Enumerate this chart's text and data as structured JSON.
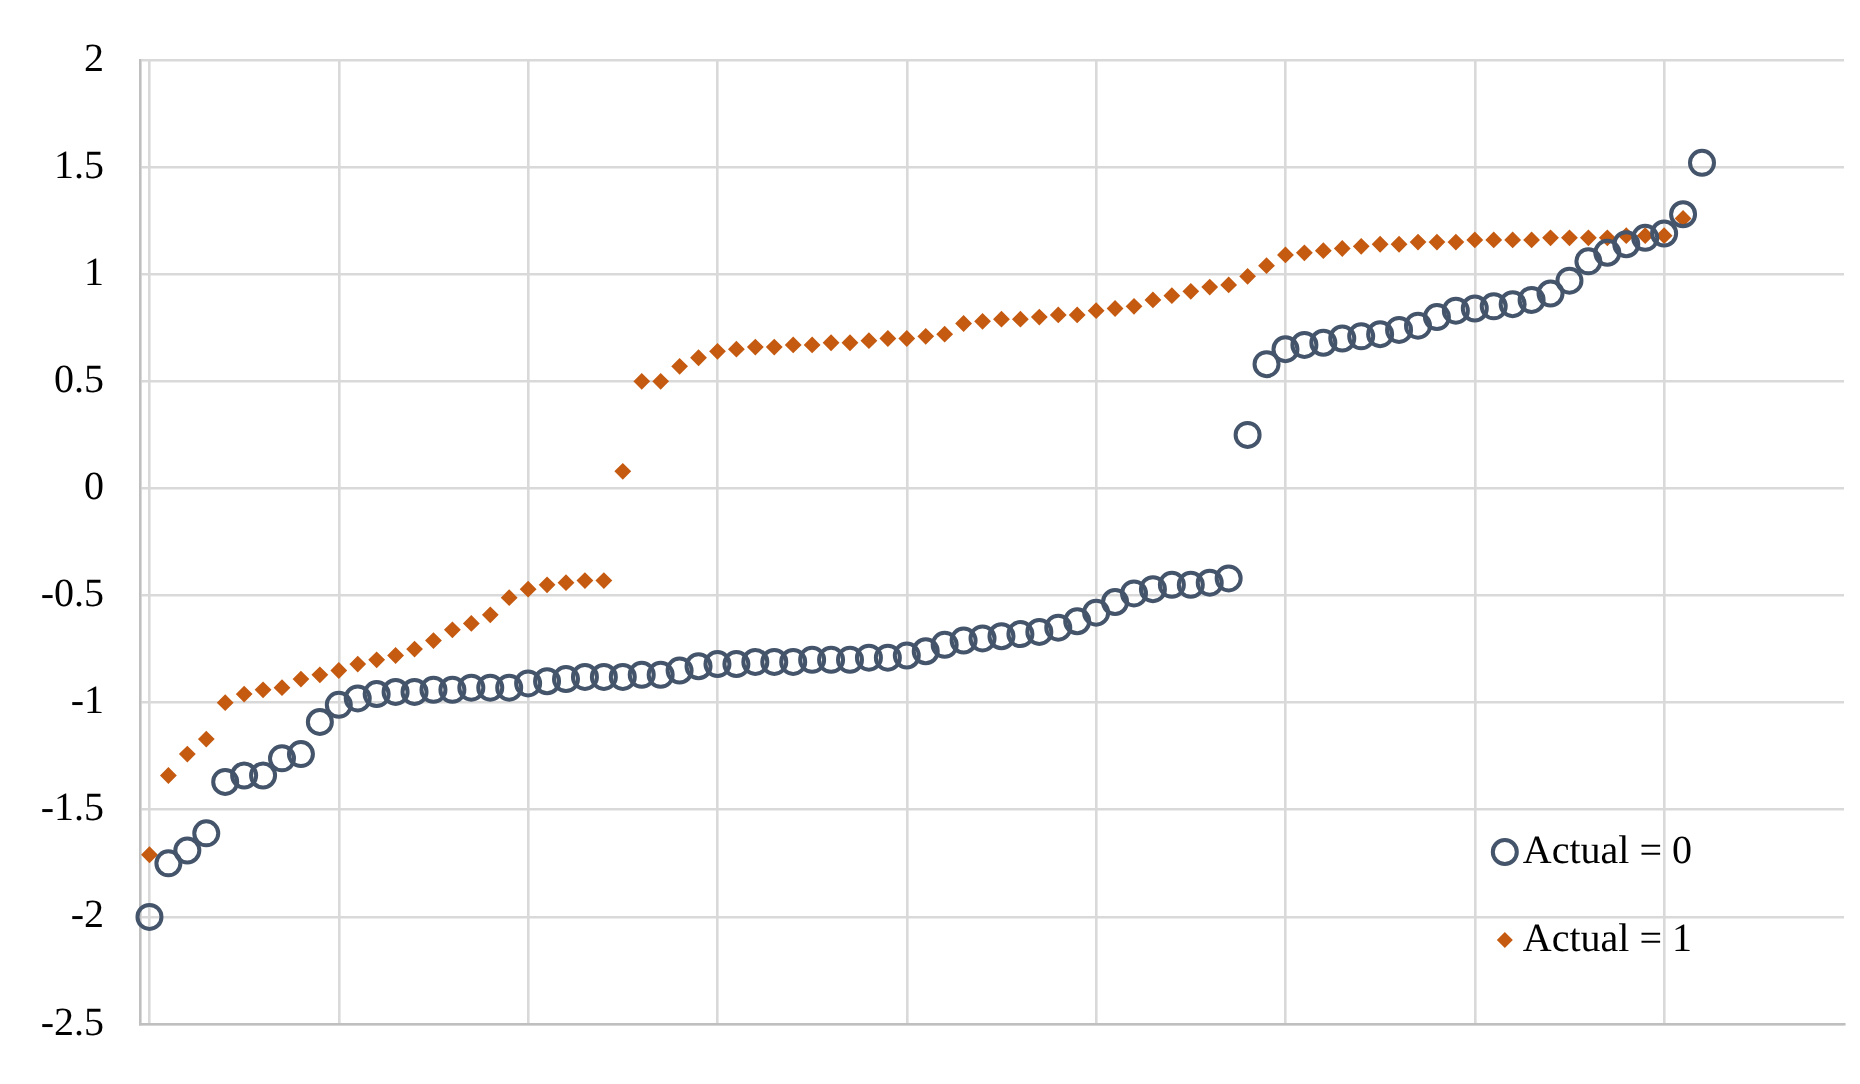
{
  "chart_data": {
    "type": "scatter",
    "categories": [
      null,
      null,
      null,
      null,
      null,
      null,
      null,
      null,
      null,
      null,
      null,
      null,
      null,
      null,
      null,
      null,
      null,
      null,
      null,
      null,
      null,
      null,
      null,
      null,
      null,
      null,
      null,
      null,
      null,
      null,
      null,
      null,
      null,
      null,
      null,
      null,
      null,
      null,
      null,
      null,
      null,
      null,
      null,
      null,
      null,
      null,
      null,
      null,
      null,
      null,
      null,
      null,
      null,
      null,
      null,
      null,
      null,
      null,
      null,
      null,
      null,
      null,
      null,
      null,
      null,
      null,
      null,
      null,
      null,
      null,
      null,
      null,
      null,
      null,
      null,
      null,
      null,
      null,
      null,
      null,
      null,
      null,
      null,
      null,
      null,
      null,
      null,
      null,
      null,
      null
    ],
    "ylim": [
      -2.5,
      2
    ],
    "yticks": [
      -2.5,
      -2,
      -1.5,
      -1,
      -0.5,
      0,
      0.5,
      1,
      1.5,
      2
    ],
    "grid": true,
    "legend": "bottom right",
    "series": [
      {
        "name": "Actual = 0",
        "color": "#44546a",
        "marker": "circle",
        "values": [
          -2.0,
          -1.75,
          -1.69,
          -1.61,
          -1.37,
          -1.34,
          -1.34,
          -1.26,
          -1.24,
          -1.09,
          -1.01,
          -0.98,
          -0.96,
          -0.95,
          -0.95,
          -0.94,
          -0.94,
          -0.93,
          -0.93,
          -0.93,
          -0.91,
          -0.9,
          -0.89,
          -0.88,
          -0.88,
          -0.88,
          -0.87,
          -0.87,
          -0.85,
          -0.83,
          -0.82,
          -0.82,
          -0.81,
          -0.81,
          -0.81,
          -0.8,
          -0.8,
          -0.8,
          -0.79,
          -0.79,
          -0.78,
          -0.76,
          -0.73,
          -0.71,
          -0.7,
          -0.69,
          -0.68,
          -0.67,
          -0.65,
          -0.62,
          -0.58,
          -0.53,
          -0.49,
          -0.47,
          -0.45,
          -0.45,
          -0.44,
          -0.42,
          0.25,
          0.58,
          0.65,
          0.67,
          0.68,
          0.7,
          0.71,
          0.72,
          0.74,
          0.76,
          0.8,
          0.83,
          0.84,
          0.85,
          0.86,
          0.88,
          0.91,
          0.97,
          1.06,
          1.1,
          1.14,
          1.17,
          1.19,
          1.28,
          1.52,
          null,
          null,
          null,
          null,
          null,
          null,
          null
        ]
      },
      {
        "name": "Actual = 1",
        "color": "#c55a11",
        "marker": "diamond",
        "values": [
          -1.71,
          -1.34,
          -1.24,
          -1.17,
          -1.0,
          -0.96,
          -0.94,
          -0.93,
          -0.89,
          -0.87,
          -0.85,
          -0.82,
          -0.8,
          -0.78,
          -0.75,
          -0.71,
          -0.66,
          -0.63,
          -0.59,
          -0.51,
          -0.47,
          -0.45,
          -0.44,
          -0.43,
          -0.43,
          0.08,
          0.5,
          0.5,
          0.57,
          0.61,
          0.64,
          0.65,
          0.66,
          0.66,
          0.67,
          0.67,
          0.68,
          0.68,
          0.69,
          0.7,
          0.7,
          0.71,
          0.72,
          0.77,
          0.78,
          0.79,
          0.79,
          0.8,
          0.81,
          0.81,
          0.83,
          0.84,
          0.85,
          0.88,
          0.9,
          0.92,
          0.94,
          0.95,
          0.99,
          1.04,
          1.09,
          1.1,
          1.11,
          1.12,
          1.13,
          1.14,
          1.14,
          1.15,
          1.15,
          1.15,
          1.16,
          1.16,
          1.16,
          1.16,
          1.17,
          1.17,
          1.17,
          1.17,
          1.18,
          1.18,
          1.18,
          1.26,
          null,
          null,
          null,
          null,
          null,
          null,
          null,
          null
        ]
      }
    ]
  }
}
